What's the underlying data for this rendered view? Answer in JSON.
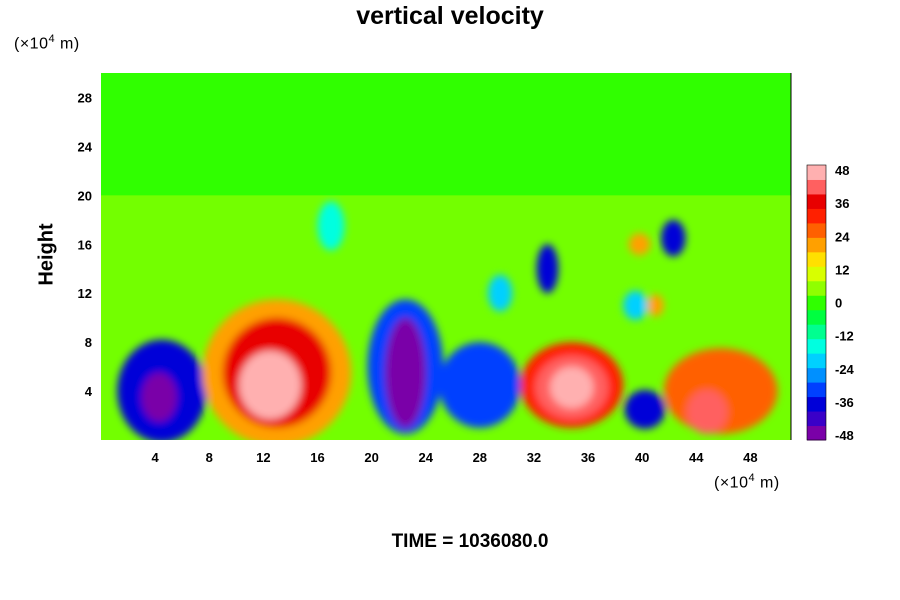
{
  "chart_data": {
    "type": "heatmap",
    "title": "vertical velocity",
    "xlabel": "",
    "ylabel": "Height",
    "x_unit": "(×10⁴ m)",
    "y_unit": "(×10⁴ m)",
    "xlim": [
      0,
      51
    ],
    "ylim": [
      0,
      30
    ],
    "x_ticks": [
      4,
      8,
      12,
      16,
      20,
      24,
      28,
      32,
      36,
      40,
      44,
      48
    ],
    "y_ticks": [
      4,
      8,
      12,
      16,
      20,
      24,
      28
    ],
    "colorbar": {
      "min": -48,
      "max": 48,
      "ticks": [
        48,
        36,
        24,
        12,
        0,
        -12,
        -24,
        -36,
        -48
      ],
      "colors": [
        "#7a00a8",
        "#3a00c8",
        "#0000d8",
        "#0040ff",
        "#0090ff",
        "#00d0ff",
        "#00ffe0",
        "#00ff90",
        "#00ff40",
        "#30ff00",
        "#90ff00",
        "#d8ff00",
        "#ffe000",
        "#ffa000",
        "#ff6000",
        "#ff2000",
        "#e80000",
        "#ff6060",
        "#ffb0b0"
      ]
    },
    "regions": [
      {
        "x": 4.5,
        "y": 4.0,
        "rx": 3.3,
        "ry": 4.2,
        "value": -40
      },
      {
        "x": 4.3,
        "y": 3.5,
        "rx": 1.3,
        "ry": 2.0,
        "value": -48
      },
      {
        "x": 13.0,
        "y": 5.5,
        "rx": 5.5,
        "ry": 6.0,
        "value": 20
      },
      {
        "x": 13.0,
        "y": 5.5,
        "rx": 4.0,
        "ry": 4.5,
        "value": 38
      },
      {
        "x": 12.5,
        "y": 4.5,
        "rx": 2.3,
        "ry": 2.8,
        "value": 48
      },
      {
        "x": 22.5,
        "y": 6.0,
        "rx": 2.8,
        "ry": 5.5,
        "value": -34
      },
      {
        "x": 22.5,
        "y": 5.5,
        "rx": 1.5,
        "ry": 4.5,
        "value": -48
      },
      {
        "x": 28.0,
        "y": 4.5,
        "rx": 3.0,
        "ry": 3.5,
        "value": -30
      },
      {
        "x": 34.8,
        "y": 4.5,
        "rx": 3.8,
        "ry": 3.5,
        "value": 30
      },
      {
        "x": 34.8,
        "y": 4.3,
        "rx": 2.7,
        "ry": 2.6,
        "value": 40
      },
      {
        "x": 34.8,
        "y": 4.3,
        "rx": 1.6,
        "ry": 1.7,
        "value": 48
      },
      {
        "x": 40.2,
        "y": 2.5,
        "rx": 1.5,
        "ry": 1.6,
        "value": -40
      },
      {
        "x": 45.8,
        "y": 4.0,
        "rx": 4.2,
        "ry": 3.5,
        "value": 26
      },
      {
        "x": 44.8,
        "y": 2.3,
        "rx": 1.5,
        "ry": 1.8,
        "value": 40
      },
      {
        "x": 33.0,
        "y": 14.0,
        "rx": 0.8,
        "ry": 2.0,
        "value": -36
      },
      {
        "x": 42.3,
        "y": 16.5,
        "rx": 0.9,
        "ry": 1.5,
        "value": -36
      },
      {
        "x": 29.5,
        "y": 12.0,
        "rx": 0.9,
        "ry": 1.5,
        "value": -24
      },
      {
        "x": 39.5,
        "y": 11.0,
        "rx": 0.9,
        "ry": 1.2,
        "value": -20
      },
      {
        "x": 17.0,
        "y": 17.5,
        "rx": 1.0,
        "ry": 2.0,
        "value": -16
      },
      {
        "x": 39.8,
        "y": 16.0,
        "rx": 0.8,
        "ry": 0.9,
        "value": 20
      },
      {
        "x": 41.0,
        "y": 11.0,
        "rx": 0.6,
        "ry": 0.9,
        "value": 22
      }
    ]
  },
  "time_text": "TIME = 1036080.0"
}
